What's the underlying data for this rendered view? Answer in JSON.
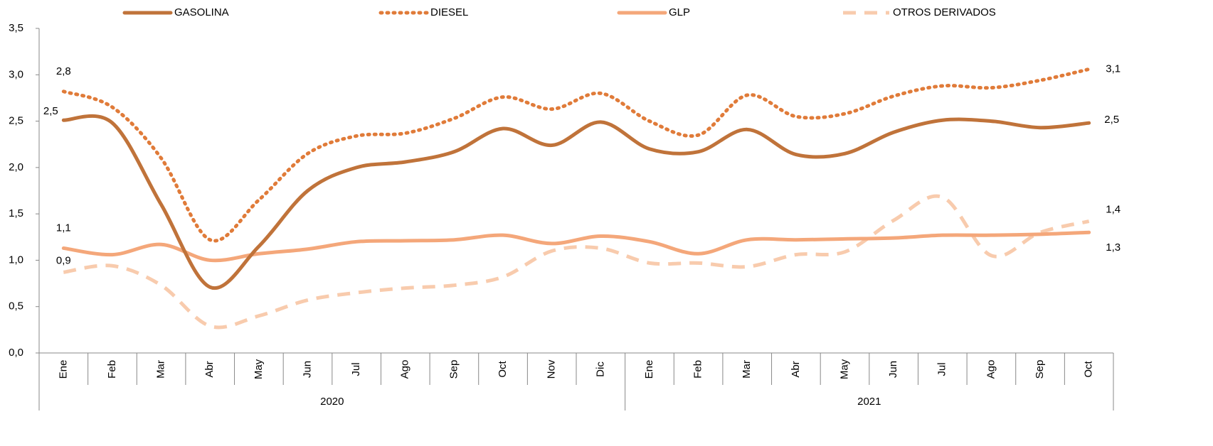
{
  "chart_data": {
    "type": "line",
    "groups": [
      {
        "name": "2020",
        "categories": [
          "Ene",
          "Feb",
          "Mar",
          "Abr",
          "May",
          "Jun",
          "Jul",
          "Ago",
          "Sep",
          "Oct",
          "Nov",
          "Dic"
        ]
      },
      {
        "name": "2021",
        "categories": [
          "Ene",
          "Feb",
          "Mar",
          "Abr",
          "May",
          "Jun",
          "Jul",
          "Ago",
          "Sep",
          "Oct"
        ]
      }
    ],
    "series": [
      {
        "name": "GASOLINA",
        "color": "#c0733a",
        "style": "solid",
        "values": [
          2.51,
          2.48,
          1.6,
          0.71,
          1.15,
          1.75,
          2.0,
          2.06,
          2.17,
          2.42,
          2.24,
          2.49,
          2.2,
          2.17,
          2.41,
          2.14,
          2.15,
          2.38,
          2.51,
          2.5,
          2.43,
          2.48
        ],
        "value_labels": [
          "2,5",
          null,
          null,
          null,
          null,
          null,
          null,
          null,
          null,
          null,
          null,
          null,
          null,
          null,
          null,
          null,
          null,
          null,
          null,
          null,
          null,
          "2,5"
        ]
      },
      {
        "name": "DIESEL",
        "color": "#e07b39",
        "style": "dotted",
        "values": [
          2.82,
          2.65,
          2.1,
          1.22,
          1.65,
          2.15,
          2.34,
          2.37,
          2.53,
          2.76,
          2.63,
          2.8,
          2.5,
          2.35,
          2.78,
          2.55,
          2.58,
          2.77,
          2.88,
          2.86,
          2.94,
          3.06
        ],
        "value_labels": [
          "2,8",
          null,
          null,
          null,
          null,
          null,
          null,
          null,
          null,
          null,
          null,
          null,
          null,
          null,
          null,
          null,
          null,
          null,
          null,
          null,
          null,
          "3,1"
        ]
      },
      {
        "name": "GLP",
        "color": "#f4a77a",
        "style": "solid",
        "values": [
          1.13,
          1.06,
          1.17,
          1.0,
          1.07,
          1.12,
          1.2,
          1.21,
          1.22,
          1.27,
          1.18,
          1.26,
          1.2,
          1.07,
          1.22,
          1.22,
          1.23,
          1.24,
          1.27,
          1.27,
          1.28,
          1.3
        ],
        "value_labels": [
          "1,1",
          null,
          null,
          null,
          null,
          null,
          null,
          null,
          null,
          null,
          null,
          null,
          null,
          null,
          null,
          null,
          null,
          null,
          null,
          null,
          null,
          "1,3"
        ]
      },
      {
        "name": "OTROS DERIVADOS",
        "color": "#f8cbad",
        "style": "dashed",
        "values": [
          0.87,
          0.94,
          0.73,
          0.29,
          0.4,
          0.57,
          0.65,
          0.7,
          0.73,
          0.82,
          1.1,
          1.13,
          0.97,
          0.97,
          0.93,
          1.06,
          1.09,
          1.43,
          1.68,
          1.05,
          1.3,
          1.42
        ],
        "value_labels": [
          "0,9",
          null,
          null,
          null,
          null,
          null,
          null,
          null,
          null,
          null,
          null,
          null,
          null,
          null,
          null,
          null,
          null,
          null,
          null,
          null,
          null,
          "1,4"
        ]
      }
    ],
    "ylim": [
      0,
      3.5
    ],
    "yticks": [
      {
        "value": 0,
        "label": "0,0"
      },
      {
        "value": 0.5,
        "label": "0,5"
      },
      {
        "value": 1,
        "label": "1,0"
      },
      {
        "value": 1.5,
        "label": "1,5"
      },
      {
        "value": 2,
        "label": "2,0"
      },
      {
        "value": 2.5,
        "label": "2,5"
      },
      {
        "value": 3,
        "label": "3,0"
      },
      {
        "value": 3.5,
        "label": "3,5"
      }
    ],
    "legend": "top"
  }
}
